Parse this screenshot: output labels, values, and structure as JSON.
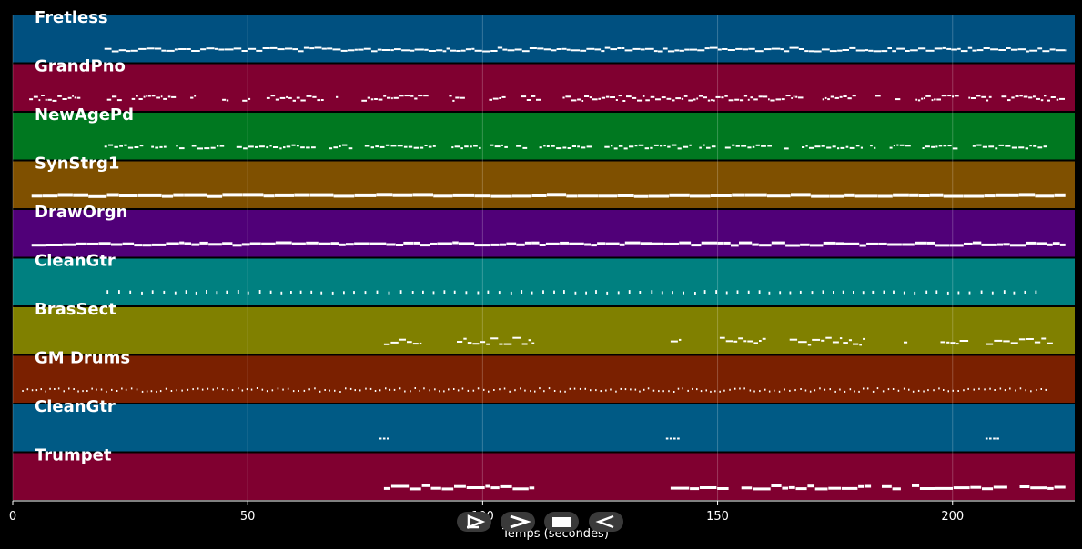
{
  "chart_data": {
    "type": "piano-roll",
    "xlabel": "Temps (secondes)",
    "xlim": [
      0,
      226
    ],
    "xticks": [
      0,
      50,
      100,
      150,
      200
    ],
    "grid": true,
    "tracks": [
      {
        "name": "Fretless",
        "color": "#005080",
        "start": 19.5,
        "end": 224,
        "style": "bass"
      },
      {
        "name": "GrandPno",
        "color": "#800030",
        "start": 3.5,
        "end": 224,
        "style": "piano"
      },
      {
        "name": "NewAgePd",
        "color": "#007820",
        "start": 19.5,
        "end": 220,
        "style": "pad"
      },
      {
        "name": "SynStrg1",
        "color": "#7f5000",
        "start": 4,
        "end": 224,
        "style": "strings"
      },
      {
        "name": "DrawOrgn",
        "color": "#500078",
        "start": 4,
        "end": 224,
        "style": "organ"
      },
      {
        "name": "CleanGtr",
        "color": "#008080",
        "start": 20,
        "end": 219,
        "style": "guitar"
      },
      {
        "name": "BrasSect",
        "color": "#808000",
        "start": 79,
        "end": 224,
        "style": "brass",
        "segments": [
          [
            79,
            111
          ],
          [
            140,
            224
          ]
        ]
      },
      {
        "name": "GM Drums",
        "color": "#7a2000",
        "start": 2,
        "end": 220,
        "style": "drums"
      },
      {
        "name": "CleanGtr",
        "color": "#005a85",
        "start": 78,
        "end": 210,
        "style": "sparse",
        "segments": [
          [
            78,
            80
          ],
          [
            139,
            142
          ],
          [
            207,
            210
          ]
        ]
      },
      {
        "name": "Trumpet",
        "color": "#800030",
        "start": 79,
        "end": 224,
        "style": "trumpet",
        "segments": [
          [
            79,
            111
          ],
          [
            140,
            224
          ]
        ]
      }
    ]
  },
  "controls": {
    "play_forward_label": "Play",
    "fast_forward_label": "Forward",
    "stop_label": "Stop",
    "rewind_label": "Back"
  }
}
